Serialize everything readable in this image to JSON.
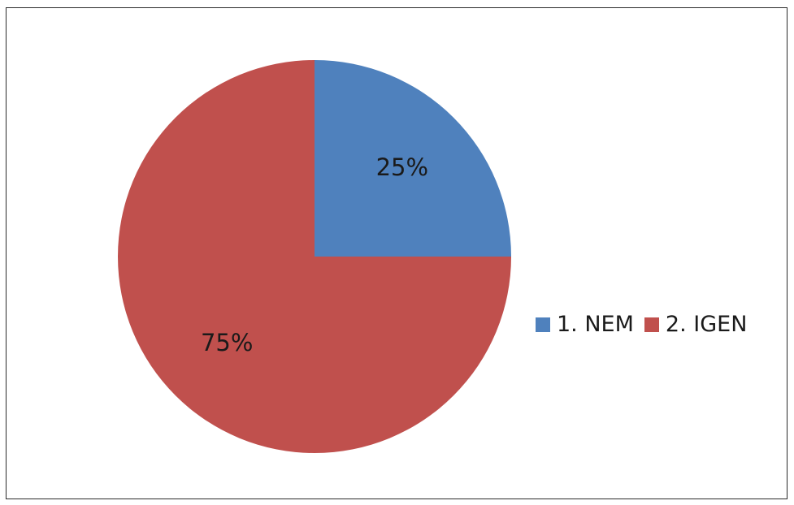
{
  "chart_data": {
    "type": "pie",
    "slices": [
      {
        "name": "1. NEM",
        "value": 25,
        "label": "25%",
        "color": "#4f81bd"
      },
      {
        "name": "2. IGEN",
        "value": 75,
        "label": "75%",
        "color": "#c0504d"
      }
    ],
    "legend_position": "right"
  }
}
